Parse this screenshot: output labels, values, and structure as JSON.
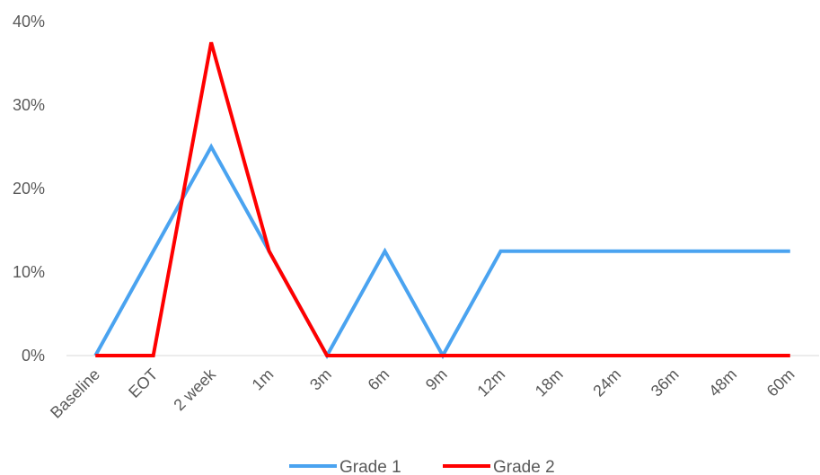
{
  "chart_data": {
    "type": "line",
    "categories": [
      "Baseline",
      "EOT",
      "2 week",
      "1m",
      "3m",
      "6m",
      "9m",
      "12m",
      "18m",
      "24m",
      "36m",
      "48m",
      "60m"
    ],
    "series": [
      {
        "name": "Grade 1",
        "color": "#4aa3f0",
        "values": [
          0,
          12.5,
          25,
          12.5,
          0,
          12.5,
          0,
          12.5,
          12.5,
          12.5,
          12.5,
          12.5,
          12.5
        ]
      },
      {
        "name": "Grade 2",
        "color": "#ff0000",
        "values": [
          0,
          0,
          37.5,
          12.5,
          0,
          0,
          0,
          0,
          0,
          0,
          0,
          0,
          0
        ]
      }
    ],
    "y_ticks": [
      "0%",
      "10%",
      "20%",
      "30%",
      "40%"
    ],
    "ylim": [
      0,
      40
    ],
    "y_unit": "%",
    "grid": false,
    "legend_position": "bottom"
  }
}
